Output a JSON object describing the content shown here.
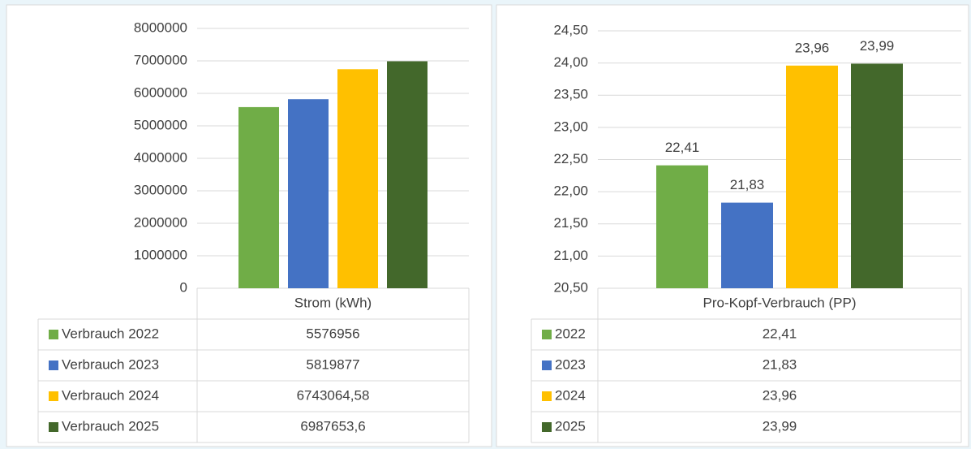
{
  "chart_data": [
    {
      "type": "bar",
      "categories": [
        "Strom (kWh)"
      ],
      "series": [
        {
          "name": "Verbrauch 2022",
          "color": "#70ad47",
          "values": [
            5576956
          ]
        },
        {
          "name": "Verbrauch 2023",
          "color": "#4472c4",
          "values": [
            5819877
          ]
        },
        {
          "name": "Verbrauch 2024",
          "color": "#ffc000",
          "values": [
            6743064.58
          ],
          "value_labels": [
            "6743064,58"
          ]
        },
        {
          "name": "Verbrauch 2025",
          "color": "#43682b",
          "values": [
            6987653.6
          ],
          "value_labels": [
            "6987653,6"
          ]
        }
      ],
      "ylim": [
        0,
        8000000
      ],
      "yticks": [
        0,
        1000000,
        2000000,
        3000000,
        4000000,
        5000000,
        6000000,
        7000000,
        8000000
      ],
      "grid": true,
      "data_labels": false
    },
    {
      "type": "bar",
      "categories": [
        "Pro-Kopf-Verbrauch (PP)"
      ],
      "series": [
        {
          "name": "2022",
          "color": "#70ad47",
          "values": [
            22.41
          ],
          "value_labels": [
            "22,41"
          ]
        },
        {
          "name": "2023",
          "color": "#4472c4",
          "values": [
            21.83
          ],
          "value_labels": [
            "21,83"
          ]
        },
        {
          "name": "2024",
          "color": "#ffc000",
          "values": [
            23.96
          ],
          "value_labels": [
            "23,96"
          ]
        },
        {
          "name": "2025",
          "color": "#43682b",
          "values": [
            23.99
          ],
          "value_labels": [
            "23,99"
          ]
        }
      ],
      "ylim": [
        20.5,
        24.5
      ],
      "yticks": [
        {
          "value": 20.5,
          "label": "20,50"
        },
        {
          "value": 21,
          "label": "21,00"
        },
        {
          "value": 21.5,
          "label": "21,50"
        },
        {
          "value": 22,
          "label": "22,00"
        },
        {
          "value": 22.5,
          "label": "22,50"
        },
        {
          "value": 23,
          "label": "23,00"
        },
        {
          "value": 23.5,
          "label": "23,50"
        },
        {
          "value": 24,
          "label": "24,00"
        },
        {
          "value": 24.5,
          "label": "24,50"
        }
      ],
      "grid": true,
      "data_labels": true
    }
  ]
}
